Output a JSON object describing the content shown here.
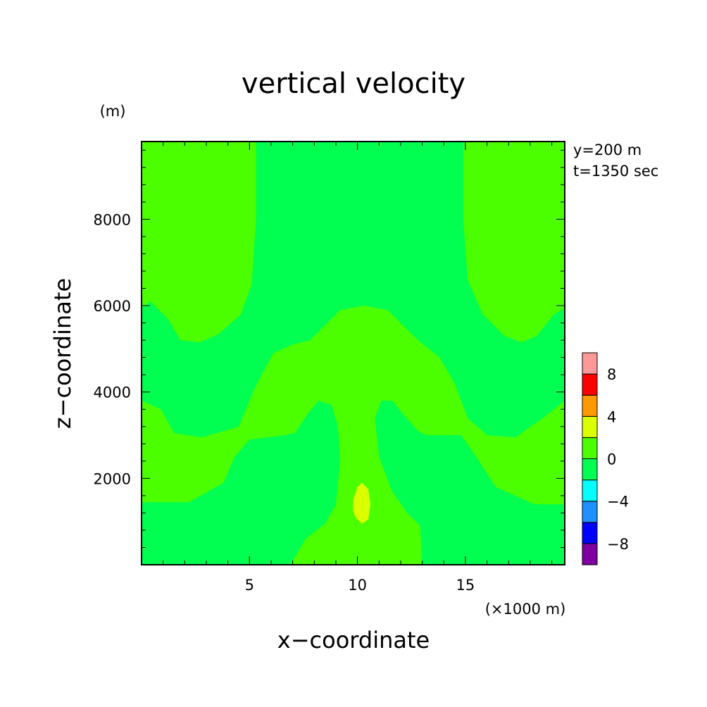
{
  "chart_data": {
    "type": "heatmap",
    "title": "vertical velocity",
    "xlabel": "x−coordinate",
    "ylabel": "z−coordinate",
    "x_unit": "(×1000 m)",
    "y_unit": "(m)",
    "annotations": [
      "y=200 m",
      "t=1350 sec"
    ],
    "xlim": [
      0,
      19.6
    ],
    "ylim": [
      0,
      9800
    ],
    "x_ticks": [
      5,
      10,
      15
    ],
    "x_tick_labels": [
      "5",
      "10",
      "15"
    ],
    "y_ticks": [
      2000,
      4000,
      6000,
      8000
    ],
    "y_tick_labels": [
      "2000",
      "4000",
      "6000",
      "8000"
    ],
    "grid": false,
    "colorbar": {
      "levels": [
        -10,
        -8,
        -6,
        -4,
        -2,
        0,
        2,
        4,
        6,
        8,
        10
      ],
      "colors": [
        "#7f00a0",
        "#0000ff",
        "#1e90ff",
        "#00ffff",
        "#00ff50",
        "#4cff00",
        "#dcff00",
        "#ff9900",
        "#ff0000",
        "#ff9999"
      ],
      "tick_values": [
        -8,
        -4,
        0,
        4,
        8
      ],
      "tick_labels": [
        "−8",
        "−4",
        "0",
        "4",
        "8"
      ]
    },
    "regions": [
      {
        "level": "-2 to 0",
        "color": "#00ff50",
        "description": "background"
      },
      {
        "level": "0 to 2",
        "color": "#4cff00",
        "description": "upper-left lobe",
        "polygon": [
          [
            0,
            9800
          ],
          [
            5.3,
            9800
          ],
          [
            5.3,
            8000
          ],
          [
            5.1,
            6500
          ],
          [
            4.6,
            5800
          ],
          [
            3.6,
            5350
          ],
          [
            2.7,
            5150
          ],
          [
            1.8,
            5200
          ],
          [
            1.2,
            5700
          ],
          [
            0.4,
            6100
          ],
          [
            0,
            5950
          ]
        ]
      },
      {
        "level": "0 to 2",
        "color": "#4cff00",
        "description": "upper-right lobe",
        "polygon": [
          [
            14.9,
            9800
          ],
          [
            19.6,
            9800
          ],
          [
            19.6,
            5950
          ],
          [
            19.1,
            5800
          ],
          [
            18.3,
            5300
          ],
          [
            17.6,
            5150
          ],
          [
            16.8,
            5300
          ],
          [
            15.8,
            5800
          ],
          [
            15.1,
            6600
          ],
          [
            14.9,
            8000
          ]
        ]
      },
      {
        "level": "0 to 2",
        "color": "#4cff00",
        "description": "central band",
        "polygon": [
          [
            0,
            3800
          ],
          [
            0.9,
            3600
          ],
          [
            1.5,
            3050
          ],
          [
            2.8,
            2950
          ],
          [
            4.5,
            3200
          ],
          [
            5.3,
            4150
          ],
          [
            6.1,
            4900
          ],
          [
            7.0,
            5100
          ],
          [
            7.8,
            5200
          ],
          [
            9.2,
            5900
          ],
          [
            10.3,
            6000
          ],
          [
            11.4,
            5900
          ],
          [
            12.8,
            5200
          ],
          [
            13.8,
            4800
          ],
          [
            14.5,
            4200
          ],
          [
            15.1,
            3400
          ],
          [
            16.0,
            3000
          ],
          [
            17.3,
            2950
          ],
          [
            18.6,
            3400
          ],
          [
            19.6,
            3800
          ],
          [
            19.6,
            1400
          ],
          [
            18.2,
            1400
          ],
          [
            16.4,
            1800
          ],
          [
            15.5,
            2500
          ],
          [
            14.8,
            3000
          ],
          [
            13.2,
            3000
          ],
          [
            12.8,
            3100
          ],
          [
            12.1,
            3500
          ],
          [
            11.6,
            3800
          ],
          [
            11.1,
            3800
          ],
          [
            10.8,
            3400
          ],
          [
            11.0,
            2500
          ],
          [
            11.6,
            1700
          ],
          [
            12.3,
            1200
          ],
          [
            12.9,
            900
          ],
          [
            13.0,
            0
          ],
          [
            6.9,
            0
          ],
          [
            7.6,
            600
          ],
          [
            8.5,
            950
          ],
          [
            9.0,
            1400
          ],
          [
            9.2,
            2400
          ],
          [
            9.1,
            3200
          ],
          [
            8.8,
            3700
          ],
          [
            8.2,
            3800
          ],
          [
            7.7,
            3500
          ],
          [
            7.1,
            3050
          ],
          [
            6.6,
            3000
          ],
          [
            5.0,
            2900
          ],
          [
            4.3,
            2500
          ],
          [
            3.8,
            1900
          ],
          [
            2.2,
            1450
          ],
          [
            0,
            1450
          ]
        ]
      },
      {
        "level": "2 to 4",
        "color": "#dcff00",
        "description": "small core near x=10.2 km, z=1500 m",
        "polygon": [
          [
            9.8,
            1500
          ],
          [
            10.0,
            1800
          ],
          [
            10.2,
            1900
          ],
          [
            10.5,
            1750
          ],
          [
            10.6,
            1400
          ],
          [
            10.5,
            1050
          ],
          [
            10.2,
            950
          ],
          [
            9.9,
            1100
          ],
          [
            9.8,
            1250
          ]
        ]
      }
    ]
  }
}
